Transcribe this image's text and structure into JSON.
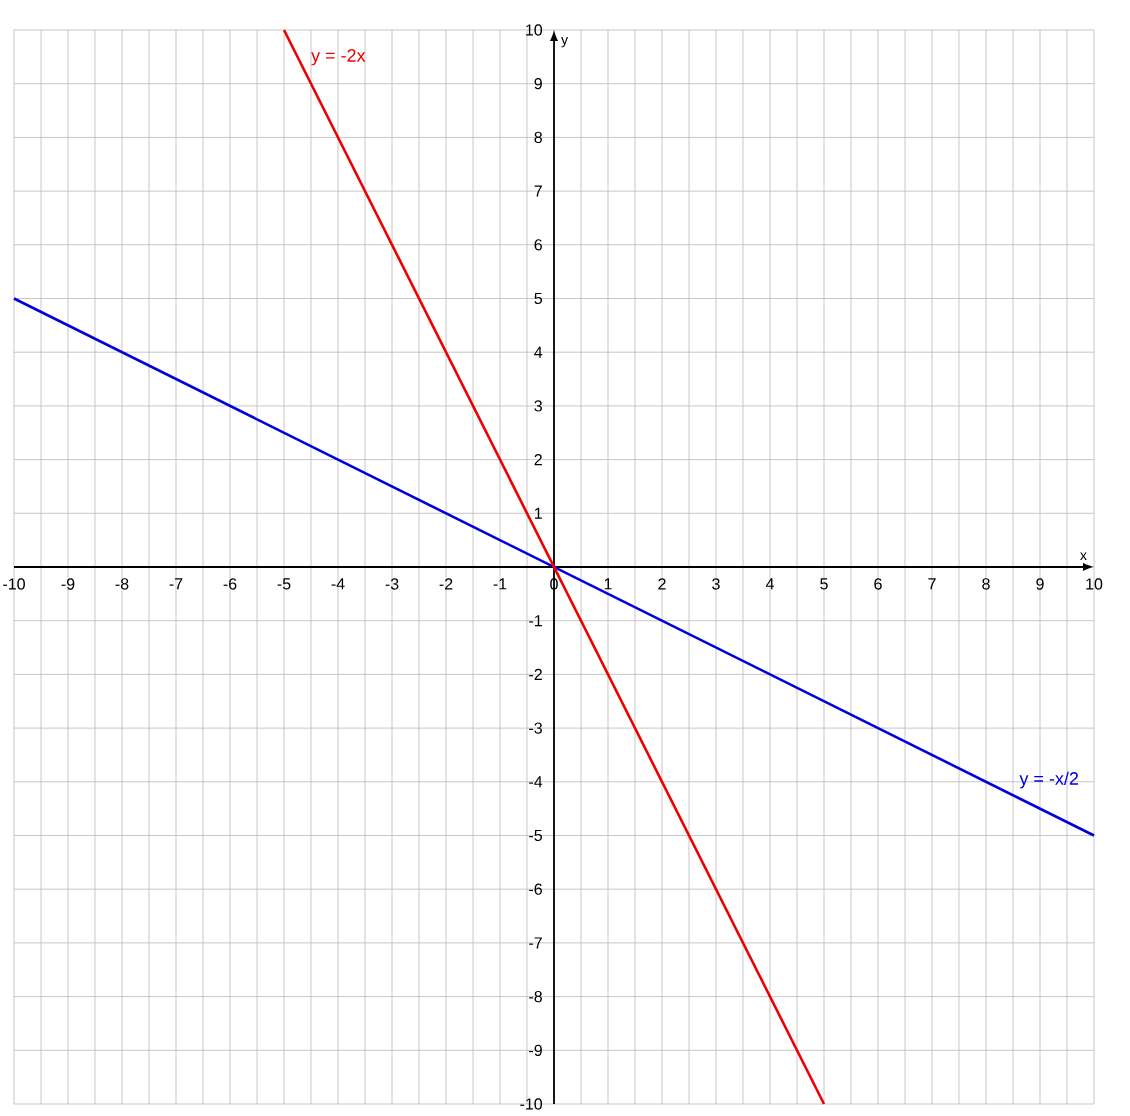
{
  "chart_data": {
    "type": "line",
    "xlabel": "x",
    "ylabel": "y",
    "series": [
      {
        "name": "y = -x/2",
        "color": "#0000dd",
        "x": [
          -10,
          10
        ],
        "values": [
          5,
          -5
        ]
      },
      {
        "name": "y = -2x",
        "color": "#ee0000",
        "x": [
          -5,
          5
        ],
        "values": [
          10,
          -10
        ]
      }
    ],
    "xlim": [
      -10,
      10
    ],
    "ylim": [
      -10,
      10
    ],
    "xticks": [
      -10,
      -9,
      -8,
      -7,
      -6,
      -5,
      -4,
      -3,
      -2,
      -1,
      0,
      1,
      2,
      3,
      4,
      5,
      6,
      7,
      8,
      9,
      10
    ],
    "yticks": [
      -10,
      -9,
      -8,
      -7,
      -6,
      -5,
      -4,
      -3,
      -2,
      -1,
      1,
      2,
      3,
      4,
      5,
      6,
      7,
      8,
      9,
      10
    ],
    "grid": true,
    "legend": false,
    "marker": "none",
    "line_style": "solid"
  }
}
